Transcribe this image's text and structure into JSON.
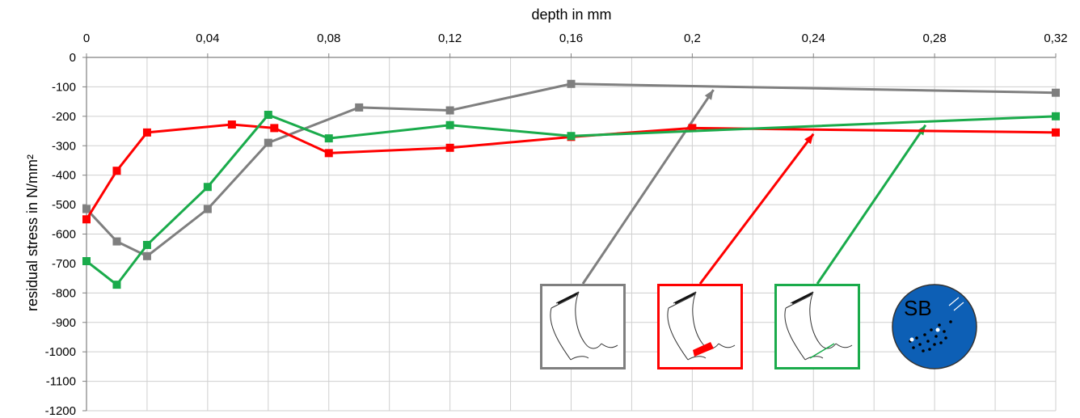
{
  "chart_data": {
    "type": "line",
    "xlabel": "depth  in  mm",
    "ylabel": "residual  stress  in  N/mm²",
    "xlim": [
      0,
      0.32
    ],
    "ylim": [
      -1200,
      0
    ],
    "x_tick_labels": [
      "0",
      "0,04",
      "0,08",
      "0,12",
      "0,16",
      "0,2",
      "0,24",
      "0,28",
      "0,32"
    ],
    "y_tick_labels": [
      "0",
      "-100",
      "-200",
      "-300",
      "-400",
      "-500",
      "-600",
      "-700",
      "-800",
      "-900",
      "-1000",
      "-1100",
      "-1200"
    ],
    "grid": true,
    "series": [
      {
        "color": "#7f7f7f",
        "x": [
          0,
          0.01,
          0.02,
          0.04,
          0.06,
          0.09,
          0.12,
          0.16,
          0.32
        ],
        "y": [
          -515,
          -625,
          -675,
          -515,
          -290,
          -170,
          -180,
          -90,
          -120
        ]
      },
      {
        "color": "#ff0000",
        "x": [
          0,
          0.01,
          0.02,
          0.048,
          0.062,
          0.08,
          0.12,
          0.16,
          0.2,
          0.32
        ],
        "y": [
          -550,
          -385,
          -255,
          -228,
          -240,
          -325,
          -307,
          -270,
          -240,
          -255
        ]
      },
      {
        "color": "#1aab4b",
        "x": [
          0,
          0.01,
          0.02,
          0.04,
          0.06,
          0.08,
          0.12,
          0.16,
          0.32
        ],
        "y": [
          -692,
          -772,
          -637,
          -440,
          -195,
          -275,
          -230,
          -267,
          -200
        ]
      }
    ],
    "insets": [
      {
        "color": "#7f7f7f",
        "arrow_target": {
          "x": 0.207,
          "y": -110
        }
      },
      {
        "color": "#ff0000",
        "arrow_target": {
          "x": 0.24,
          "y": -260
        }
      },
      {
        "color": "#1aab4b",
        "arrow_target": {
          "x": 0.277,
          "y": -230
        }
      }
    ],
    "badge": {
      "text": "SB",
      "color": "#0d5fb5"
    }
  }
}
